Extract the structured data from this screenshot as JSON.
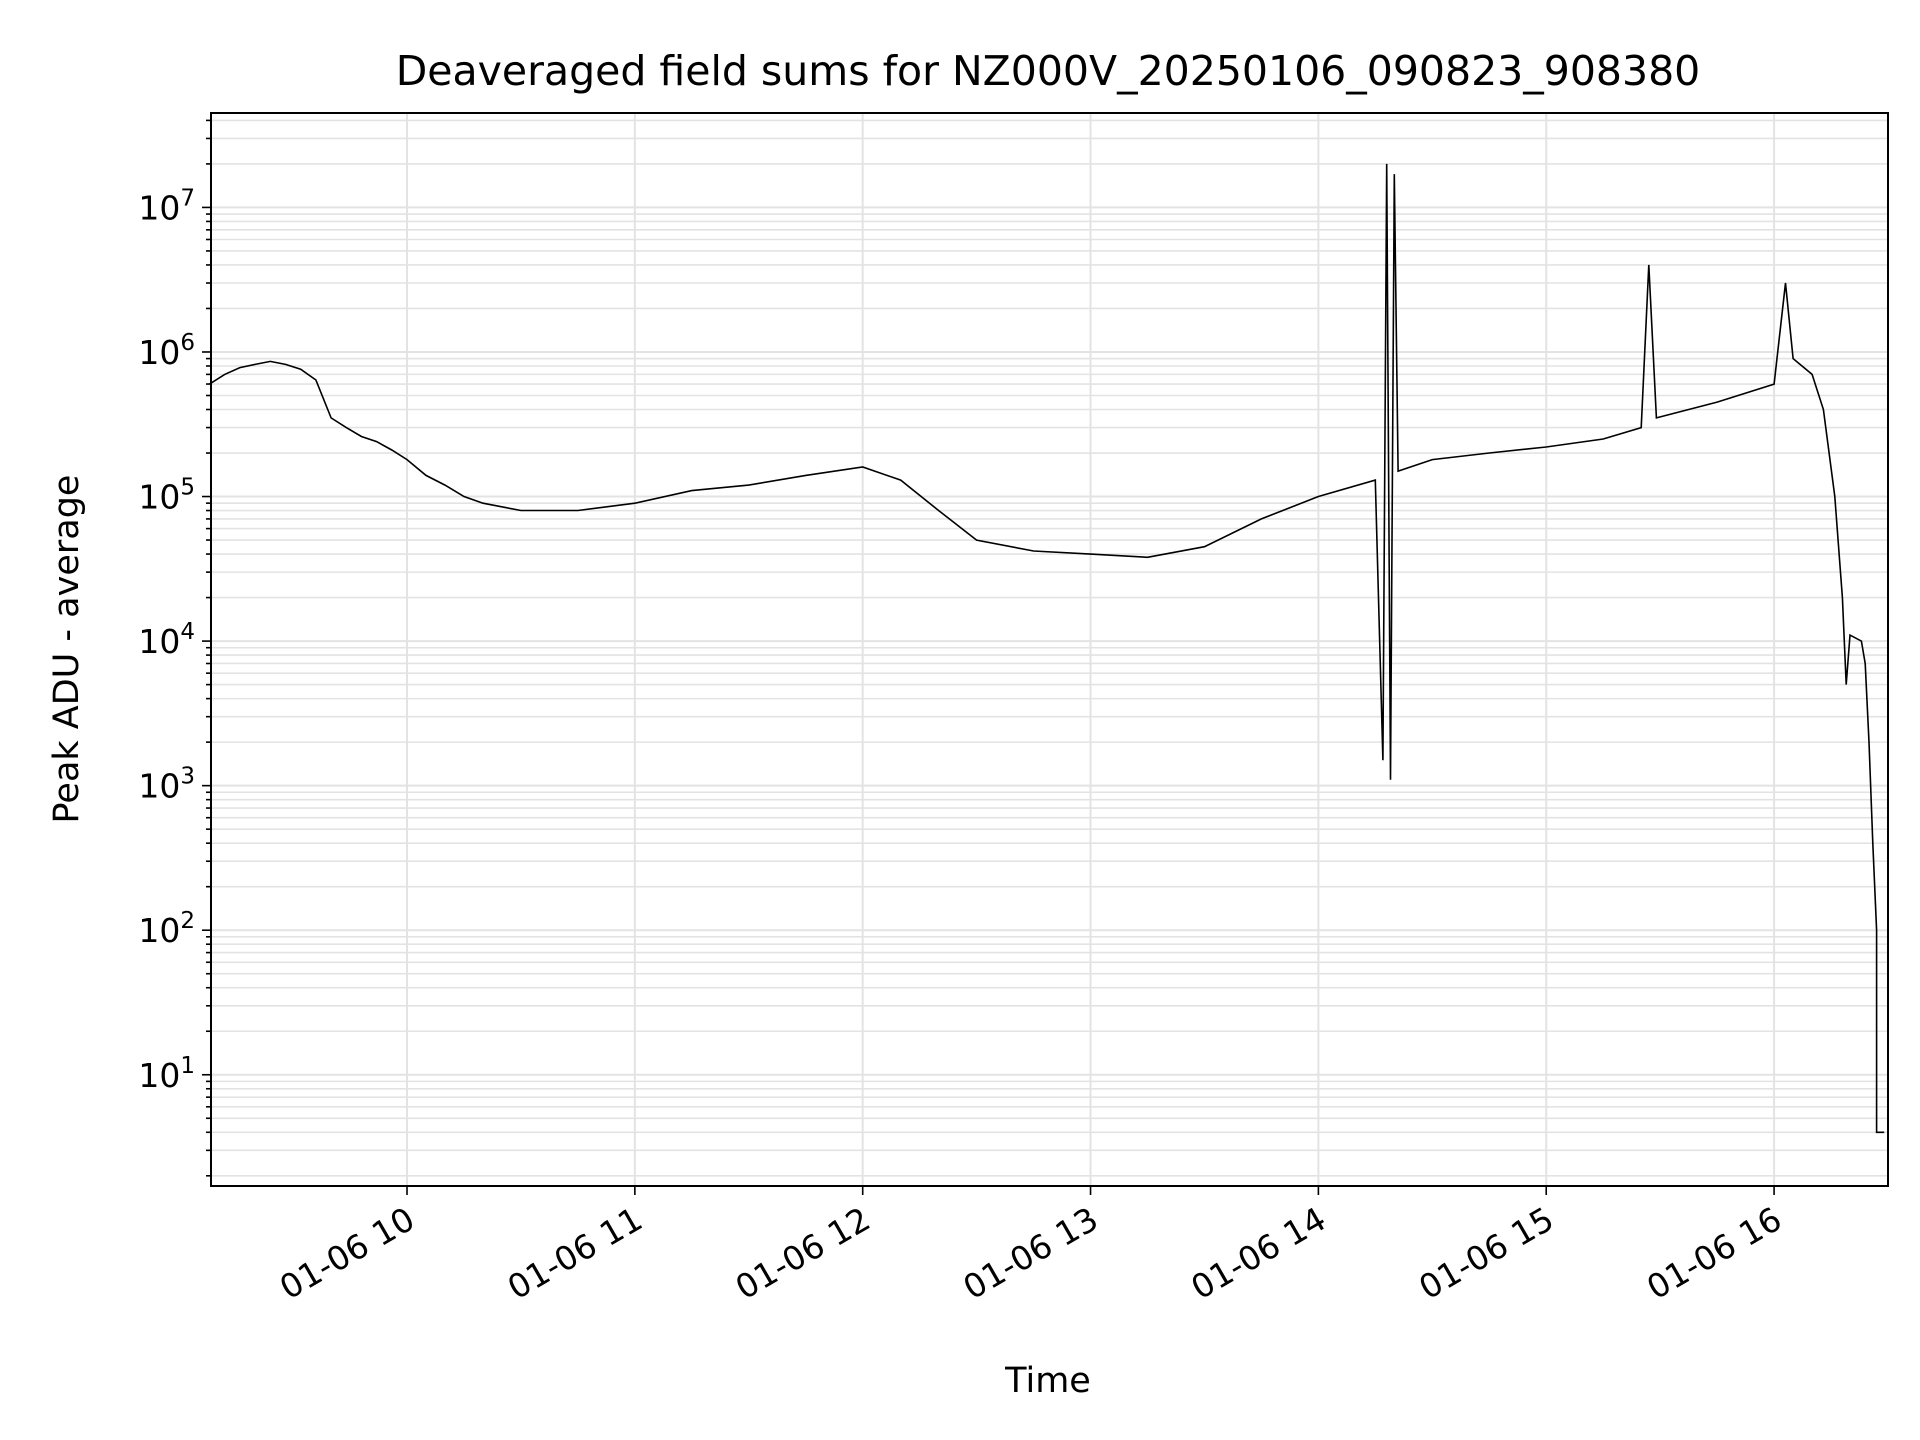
{
  "chart_data": {
    "type": "line",
    "title": "Deaveraged field sums for NZ000V_20250106_090823_908380",
    "xlabel": "Time",
    "ylabel": "Peak ADU - average",
    "yscale": "log",
    "ylim": [
      1.7,
      45000000
    ],
    "xlim": [
      "2025-01-06 09:08:23",
      "2025-01-06 16:30:00"
    ],
    "grid": true,
    "line_color": "#000000",
    "grid_color": "#e3e3e3",
    "x_ticks": [
      {
        "time": "2025-01-06 10:00",
        "label": "01-06 10"
      },
      {
        "time": "2025-01-06 11:00",
        "label": "01-06 11"
      },
      {
        "time": "2025-01-06 12:00",
        "label": "01-06 12"
      },
      {
        "time": "2025-01-06 13:00",
        "label": "01-06 13"
      },
      {
        "time": "2025-01-06 14:00",
        "label": "01-06 14"
      },
      {
        "time": "2025-01-06 15:00",
        "label": "01-06 15"
      },
      {
        "time": "2025-01-06 16:00",
        "label": "01-06 16"
      }
    ],
    "y_ticks": [
      {
        "value": 10,
        "base": "10",
        "exp": "1"
      },
      {
        "value": 100,
        "base": "10",
        "exp": "2"
      },
      {
        "value": 1000,
        "base": "10",
        "exp": "3"
      },
      {
        "value": 10000,
        "base": "10",
        "exp": "4"
      },
      {
        "value": 100000,
        "base": "10",
        "exp": "5"
      },
      {
        "value": 1000000,
        "base": "10",
        "exp": "6"
      },
      {
        "value": 10000000,
        "base": "10",
        "exp": "7"
      }
    ],
    "series": [
      {
        "values_note_free": true,
        "points": [
          [
            "2025-01-06 09:08",
            600000
          ],
          [
            "2025-01-06 09:12",
            700000
          ],
          [
            "2025-01-06 09:16",
            780000
          ],
          [
            "2025-01-06 09:20",
            820000
          ],
          [
            "2025-01-06 09:24",
            860000
          ],
          [
            "2025-01-06 09:28",
            820000
          ],
          [
            "2025-01-06 09:32",
            760000
          ],
          [
            "2025-01-06 09:36",
            640000
          ],
          [
            "2025-01-06 09:40",
            350000
          ],
          [
            "2025-01-06 09:44",
            300000
          ],
          [
            "2025-01-06 09:48",
            260000
          ],
          [
            "2025-01-06 09:52",
            240000
          ],
          [
            "2025-01-06 09:56",
            210000
          ],
          [
            "2025-01-06 10:00",
            180000
          ],
          [
            "2025-01-06 10:05",
            140000
          ],
          [
            "2025-01-06 10:10",
            120000
          ],
          [
            "2025-01-06 10:15",
            100000
          ],
          [
            "2025-01-06 10:20",
            90000
          ],
          [
            "2025-01-06 10:30",
            80000
          ],
          [
            "2025-01-06 10:45",
            80000
          ],
          [
            "2025-01-06 11:00",
            90000
          ],
          [
            "2025-01-06 11:15",
            110000
          ],
          [
            "2025-01-06 11:30",
            120000
          ],
          [
            "2025-01-06 11:45",
            140000
          ],
          [
            "2025-01-06 12:00",
            160000
          ],
          [
            "2025-01-06 12:10",
            130000
          ],
          [
            "2025-01-06 12:20",
            80000
          ],
          [
            "2025-01-06 12:30",
            50000
          ],
          [
            "2025-01-06 12:45",
            42000
          ],
          [
            "2025-01-06 13:00",
            40000
          ],
          [
            "2025-01-06 13:15",
            38000
          ],
          [
            "2025-01-06 13:30",
            45000
          ],
          [
            "2025-01-06 13:45",
            70000
          ],
          [
            "2025-01-06 14:00",
            100000
          ],
          [
            "2025-01-06 14:15",
            130000
          ],
          [
            "2025-01-06 14:17",
            1500
          ],
          [
            "2025-01-06 14:18",
            20000000
          ],
          [
            "2025-01-06 14:19",
            1100
          ],
          [
            "2025-01-06 14:20",
            17000000
          ],
          [
            "2025-01-06 14:21",
            150000
          ],
          [
            "2025-01-06 14:30",
            180000
          ],
          [
            "2025-01-06 14:45",
            200000
          ],
          [
            "2025-01-06 15:00",
            220000
          ],
          [
            "2025-01-06 15:15",
            250000
          ],
          [
            "2025-01-06 15:25",
            300000
          ],
          [
            "2025-01-06 15:27",
            4000000
          ],
          [
            "2025-01-06 15:29",
            350000
          ],
          [
            "2025-01-06 15:45",
            450000
          ],
          [
            "2025-01-06 16:00",
            600000
          ],
          [
            "2025-01-06 16:03",
            3000000
          ],
          [
            "2025-01-06 16:05",
            900000
          ],
          [
            "2025-01-06 16:10",
            700000
          ],
          [
            "2025-01-06 16:13",
            400000
          ],
          [
            "2025-01-06 16:16",
            100000
          ],
          [
            "2025-01-06 16:18",
            20000
          ],
          [
            "2025-01-06 16:19",
            5000
          ],
          [
            "2025-01-06 16:20",
            11000
          ],
          [
            "2025-01-06 16:23",
            10000
          ],
          [
            "2025-01-06 16:24",
            7000
          ],
          [
            "2025-01-06 16:25",
            2000
          ],
          [
            "2025-01-06 16:26",
            400
          ],
          [
            "2025-01-06 16:27",
            100
          ],
          [
            "2025-01-06 16:27",
            4
          ],
          [
            "2025-01-06 16:29",
            4
          ]
        ]
      }
    ]
  }
}
